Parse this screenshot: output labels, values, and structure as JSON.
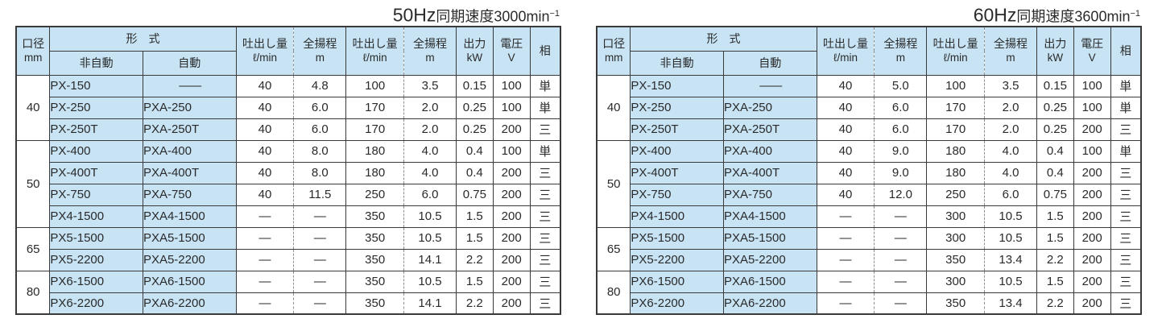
{
  "colors": {
    "cell_blue": "#c7e3f4",
    "border": "#3a3a3a",
    "dashed_divider": "#8f8f8f",
    "text": "#2a2a2a",
    "background": "#ffffff"
  },
  "tables": [
    {
      "title": {
        "freq": "50Hz",
        "body": "同期速度3000min",
        "sup": "−1"
      },
      "headers": {
        "bore_line1": "口径",
        "bore_line2": "mm",
        "type": "形　式",
        "non_auto": "非自動",
        "auto": "自動",
        "flow_line1": "吐出し量",
        "flow_line2": "ℓ/min",
        "head_line1": "全揚程",
        "head_line2": "m",
        "output_line1": "出力",
        "output_line2": "kW",
        "voltage_line1": "電圧",
        "voltage_line2": "V",
        "phase": "相"
      },
      "groups": [
        {
          "bore": "40",
          "rows": [
            [
              "PX-150",
              "——",
              "40",
              "4.8",
              "100",
              "3.5",
              "0.15",
              "100",
              "単"
            ],
            [
              "PX-250",
              "PXA-250",
              "40",
              "6.0",
              "170",
              "2.0",
              "0.25",
              "100",
              "単"
            ],
            [
              "PX-250T",
              "PXA-250T",
              "40",
              "6.0",
              "170",
              "2.0",
              "0.25",
              "200",
              "三"
            ]
          ]
        },
        {
          "bore": "50",
          "rows": [
            [
              "PX-400",
              "PXA-400",
              "40",
              "8.0",
              "180",
              "4.0",
              "0.4",
              "100",
              "単"
            ],
            [
              "PX-400T",
              "PXA-400T",
              "40",
              "8.0",
              "180",
              "4.0",
              "0.4",
              "200",
              "三"
            ],
            [
              "PX-750",
              "PXA-750",
              "40",
              "11.5",
              "250",
              "6.0",
              "0.75",
              "200",
              "三"
            ],
            [
              "PX4-1500",
              "PXA4-1500",
              "—",
              "—",
              "350",
              "10.5",
              "1.5",
              "200",
              "三"
            ]
          ]
        },
        {
          "bore": "65",
          "rows": [
            [
              "PX5-1500",
              "PXA5-1500",
              "—",
              "—",
              "350",
              "10.5",
              "1.5",
              "200",
              "三"
            ],
            [
              "PX5-2200",
              "PXA5-2200",
              "—",
              "—",
              "350",
              "14.1",
              "2.2",
              "200",
              "三"
            ]
          ]
        },
        {
          "bore": "80",
          "rows": [
            [
              "PX6-1500",
              "PXA6-1500",
              "—",
              "—",
              "350",
              "10.5",
              "1.5",
              "200",
              "三"
            ],
            [
              "PX6-2200",
              "PXA6-2200",
              "—",
              "—",
              "350",
              "14.1",
              "2.2",
              "200",
              "三"
            ]
          ]
        }
      ]
    },
    {
      "title": {
        "freq": "60Hz",
        "body": "同期速度3600min",
        "sup": "−1"
      },
      "headers": {
        "bore_line1": "口径",
        "bore_line2": "mm",
        "type": "形　式",
        "non_auto": "非自動",
        "auto": "自動",
        "flow_line1": "吐出し量",
        "flow_line2": "ℓ/min",
        "head_line1": "全揚程",
        "head_line2": "m",
        "output_line1": "出力",
        "output_line2": "kW",
        "voltage_line1": "電圧",
        "voltage_line2": "V",
        "phase": "相"
      },
      "groups": [
        {
          "bore": "40",
          "rows": [
            [
              "PX-150",
              "——",
              "40",
              "5.0",
              "100",
              "3.5",
              "0.15",
              "100",
              "単"
            ],
            [
              "PX-250",
              "PXA-250",
              "40",
              "6.0",
              "170",
              "2.0",
              "0.25",
              "100",
              "単"
            ],
            [
              "PX-250T",
              "PXA-250T",
              "40",
              "6.0",
              "170",
              "2.0",
              "0.25",
              "200",
              "三"
            ]
          ]
        },
        {
          "bore": "50",
          "rows": [
            [
              "PX-400",
              "PXA-400",
              "40",
              "9.0",
              "180",
              "4.0",
              "0.4",
              "100",
              "単"
            ],
            [
              "PX-400T",
              "PXA-400T",
              "40",
              "9.0",
              "180",
              "4.0",
              "0.4",
              "200",
              "三"
            ],
            [
              "PX-750",
              "PXA-750",
              "40",
              "12.0",
              "250",
              "6.0",
              "0.75",
              "200",
              "三"
            ],
            [
              "PX4-1500",
              "PXA4-1500",
              "—",
              "—",
              "300",
              "10.5",
              "1.5",
              "200",
              "三"
            ]
          ]
        },
        {
          "bore": "65",
          "rows": [
            [
              "PX5-1500",
              "PXA5-1500",
              "—",
              "—",
              "300",
              "10.5",
              "1.5",
              "200",
              "三"
            ],
            [
              "PX5-2200",
              "PXA5-2200",
              "—",
              "—",
              "350",
              "13.4",
              "2.2",
              "200",
              "三"
            ]
          ]
        },
        {
          "bore": "80",
          "rows": [
            [
              "PX6-1500",
              "PXA6-1500",
              "—",
              "—",
              "300",
              "10.5",
              "1.5",
              "200",
              "三"
            ],
            [
              "PX6-2200",
              "PXA6-2200",
              "—",
              "—",
              "350",
              "13.4",
              "2.2",
              "200",
              "三"
            ]
          ]
        }
      ]
    }
  ]
}
